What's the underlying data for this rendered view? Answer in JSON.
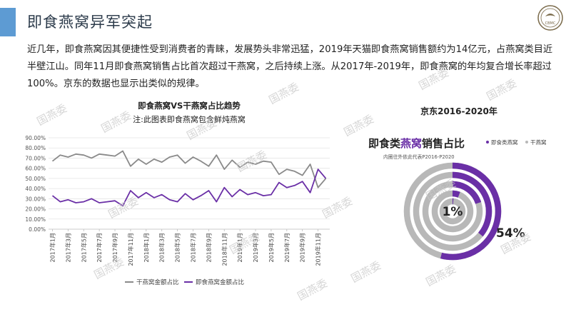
{
  "header": {
    "title": "即食燕窝异军突起",
    "logo_text": "CBMC"
  },
  "paragraph": "近几年，即食燕窝因其便捷性受到消费者的青睐，发展势头非常迅猛，2019年天猫即食燕窝销售额约为14亿元，占燕窝类目近半壁江山。同年11月即食燕窝销售占比首次超过干燕窝，之后持续上涨。从2017年-2019年，即食燕窝的年均复合增长率超过100%。京东的数据也显示出类似的规律。",
  "watermark_text": "国燕委",
  "colors": {
    "accent": "#5d9bd3",
    "dry": "#8a8a8a",
    "instant": "#6a2fa6",
    "grey_ring": "#b8b8b8",
    "axis": "#d9d9d9"
  },
  "chart_data": [
    {
      "type": "line",
      "title": "即食燕窝VS干燕窝占比趋势",
      "subtitle": "注:此图表即食燕窝包含鲜炖燕窝",
      "ylim": [
        0,
        90
      ],
      "yticks": [
        "90.00%",
        "80.00%",
        "70.00%",
        "60.00%",
        "50.00%",
        "40.00%",
        "30.00%",
        "20.00%",
        "10.00%",
        "0.00%"
      ],
      "x": [
        "2017年1月",
        "2017年2月",
        "2017年3月",
        "2017年4月",
        "2017年5月",
        "2017年6月",
        "2017年7月",
        "2017年8月",
        "2017年9月",
        "2017年10月",
        "2017年11月",
        "2017年12月",
        "2018年1月",
        "2018年2月",
        "2018年3月",
        "2018年4月",
        "2018年5月",
        "2018年6月",
        "2018年7月",
        "2018年8月",
        "2018年9月",
        "2018年10月",
        "2018年11月",
        "2018年12月",
        "2019年1月",
        "2019年2月",
        "2019年3月",
        "2019年4月",
        "2019年5月",
        "2019年6月",
        "2019年7月",
        "2019年8月",
        "2019年9月",
        "2019年10月",
        "2019年11月",
        "2019年12月"
      ],
      "xtick_labels": [
        "2017年1月",
        "2017年3月",
        "2017年5月",
        "2017年7月",
        "2017年9月",
        "2017年11月",
        "2018年1月",
        "2018年3月",
        "2018年5月",
        "2018年7月",
        "2018年9月",
        "2018年11月",
        "2019年1月",
        "2019年3月",
        "2019年5月",
        "2019年7月",
        "2019年9月",
        "2019年11月"
      ],
      "series": [
        {
          "name": "干燕窝金额占比",
          "values": [
            67,
            73,
            71,
            74,
            73,
            70,
            74,
            73,
            72,
            77,
            62,
            69,
            64,
            69,
            66,
            71,
            73,
            65,
            71,
            67,
            62,
            73,
            59,
            68,
            61,
            66,
            64,
            67,
            66,
            54,
            59,
            57,
            53,
            64,
            41,
            50
          ]
        },
        {
          "name": "即食燕窝金额占比",
          "values": [
            33,
            27,
            29,
            26,
            27,
            30,
            26,
            27,
            28,
            23,
            38,
            31,
            36,
            31,
            34,
            29,
            27,
            35,
            29,
            33,
            38,
            27,
            41,
            32,
            39,
            34,
            36,
            33,
            34,
            46,
            41,
            43,
            47,
            36,
            59,
            50
          ]
        }
      ],
      "legend_position": "bottom"
    },
    {
      "type": "pie",
      "title": "京东2016-2020年",
      "inner_title_prefix": "即食类",
      "inner_title_highlight": "燕窝",
      "inner_title_suffix": "销售占比",
      "inner_subtitle": "内圈往外依此代表P2016-P2020",
      "legend": [
        "即食类燕窝",
        "干燕窝"
      ],
      "rings_inner_to_outer": [
        {
          "period": "P2016",
          "instant": 0.01
        },
        {
          "period": "P2017",
          "instant": 0.06
        },
        {
          "period": "P2018",
          "instant": 0.2
        },
        {
          "period": "P2019",
          "instant": 0.36
        },
        {
          "period": "P2020",
          "instant": 0.54
        }
      ],
      "labels": {
        "inner": "1%",
        "outer": "54%"
      }
    }
  ]
}
